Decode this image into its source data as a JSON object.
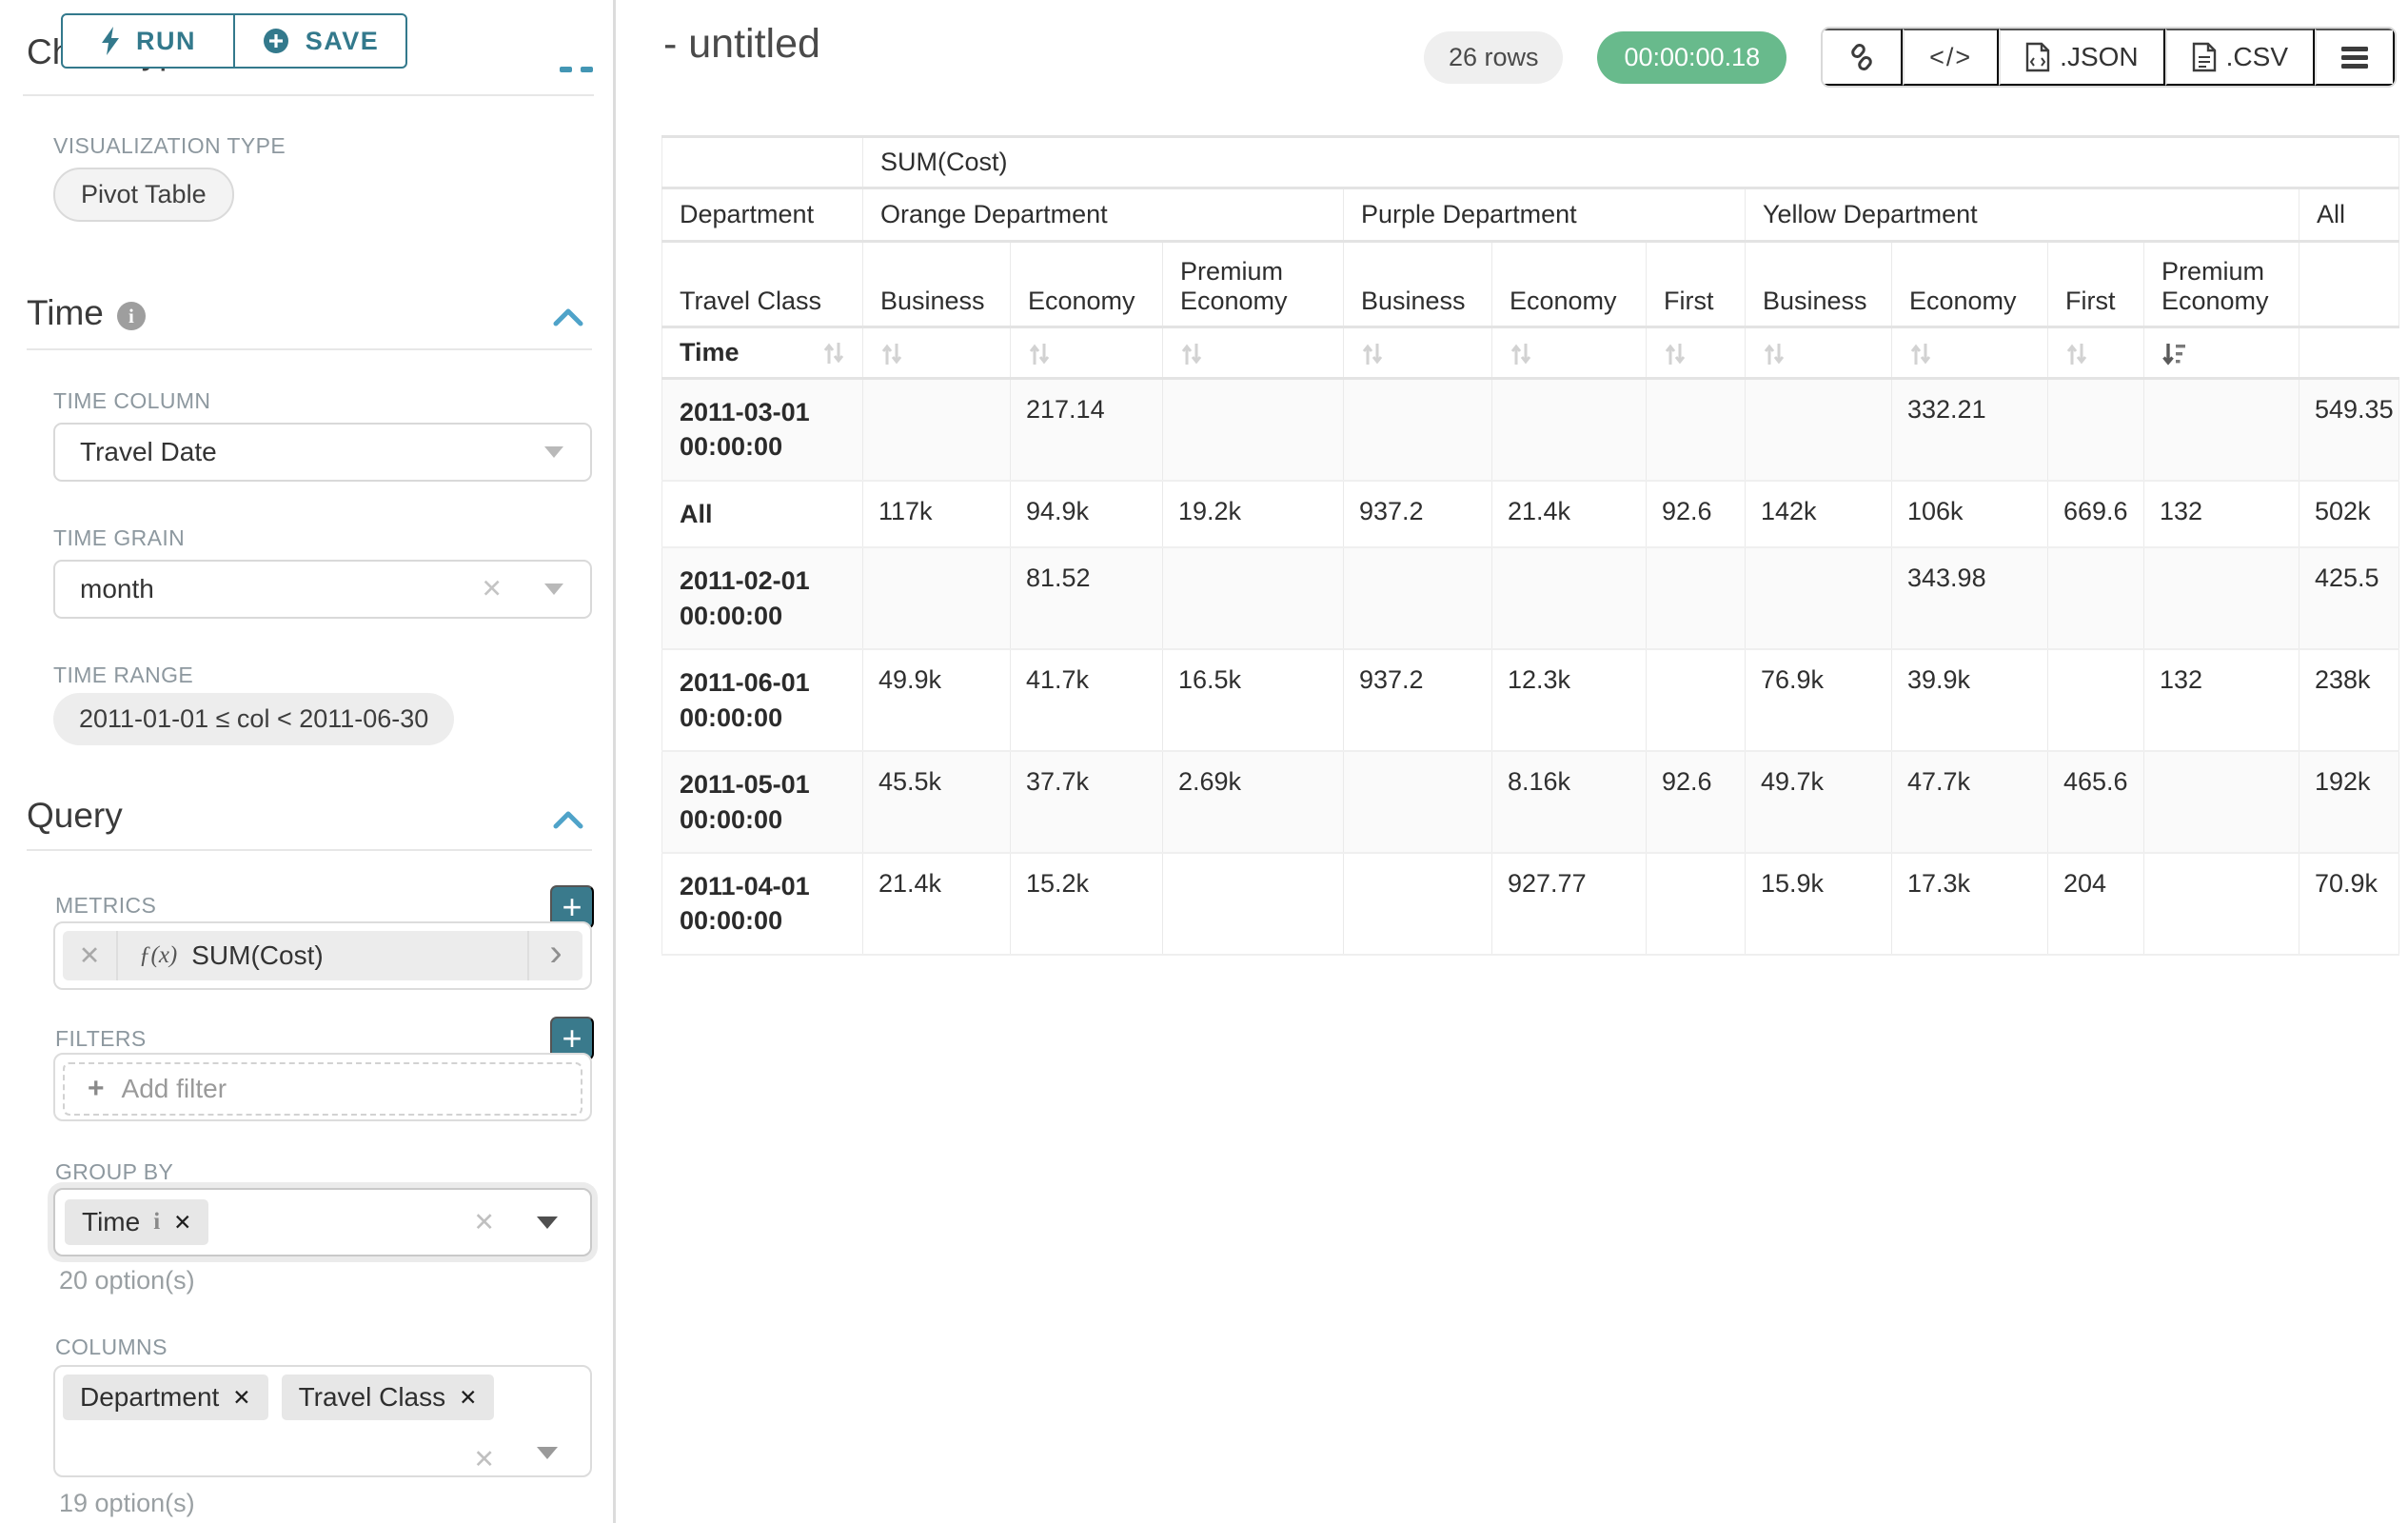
{
  "colors": {
    "accent_teal": "#33798C",
    "success_green": "#68BA8C",
    "label_gray": "#8D989F"
  },
  "sidebar": {
    "scrolled_heading": "Chart Type",
    "run_label": "RUN",
    "save_label": "SAVE",
    "visualization": {
      "label": "VISUALIZATION TYPE",
      "value": "Pivot Table"
    },
    "time_section": {
      "title": "Time",
      "time_column": {
        "label": "TIME COLUMN",
        "value": "Travel Date"
      },
      "time_grain": {
        "label": "TIME GRAIN",
        "value": "month"
      },
      "time_range": {
        "label": "TIME RANGE",
        "value": "2011-01-01 ≤ col < 2011-06-30"
      }
    },
    "query_section": {
      "title": "Query",
      "metrics": {
        "label": "METRICS",
        "fx": "ƒ(x)",
        "value": "SUM(Cost)",
        "remove": "✕",
        "expand": "›"
      },
      "filters": {
        "label": "FILTERS",
        "placeholder": "Add filter",
        "plus": "+"
      },
      "group_by": {
        "label": "GROUP BY",
        "tag": "Time",
        "tag_info": "i",
        "tag_remove": "✕",
        "hint": "20 option(s)"
      },
      "columns": {
        "label": "COLUMNS",
        "tags": [
          "Department",
          "Travel Class"
        ],
        "tag_remove": "✕",
        "hint": "19 option(s)"
      }
    }
  },
  "header": {
    "title": "- untitled",
    "row_count": "26 rows",
    "query_time": "00:00:00.18",
    "export_json": ".JSON",
    "export_csv": ".CSV",
    "code_glyph": "</>"
  },
  "pivot_table": {
    "metric_header": "SUM(Cost)",
    "row_dim_label": "Department",
    "sub_dim_label": "Travel Class",
    "time_label": "Time",
    "column_groups": [
      {
        "label": "Orange Department",
        "children": [
          "Business",
          "Economy",
          "Premium Economy"
        ]
      },
      {
        "label": "Purple Department",
        "children": [
          "Business",
          "Economy",
          "First"
        ]
      },
      {
        "label": "Yellow Department",
        "children": [
          "Business",
          "Economy",
          "First",
          "Premium Economy"
        ]
      },
      {
        "label": "All",
        "children": [
          ""
        ]
      }
    ],
    "rows": [
      {
        "label": "2011-03-01 00:00:00",
        "cells": [
          "",
          "217.14",
          "",
          "",
          "",
          "",
          "",
          "332.21",
          "",
          "",
          "549.35"
        ]
      },
      {
        "label": "All",
        "cells": [
          "117k",
          "94.9k",
          "19.2k",
          "937.2",
          "21.4k",
          "92.6",
          "142k",
          "106k",
          "669.6",
          "132",
          "502k"
        ]
      },
      {
        "label": "2011-02-01 00:00:00",
        "cells": [
          "",
          "81.52",
          "",
          "",
          "",
          "",
          "",
          "343.98",
          "",
          "",
          "425.5"
        ]
      },
      {
        "label": "2011-06-01 00:00:00",
        "cells": [
          "49.9k",
          "41.7k",
          "16.5k",
          "937.2",
          "12.3k",
          "",
          "76.9k",
          "39.9k",
          "",
          "132",
          "238k"
        ]
      },
      {
        "label": "2011-05-01 00:00:00",
        "cells": [
          "45.5k",
          "37.7k",
          "2.69k",
          "",
          "8.16k",
          "92.6",
          "49.7k",
          "47.7k",
          "465.6",
          "",
          "192k"
        ]
      },
      {
        "label": "2011-04-01 00:00:00",
        "cells": [
          "21.4k",
          "15.2k",
          "",
          "",
          "927.77",
          "",
          "15.9k",
          "17.3k",
          "204",
          "",
          "70.9k"
        ]
      }
    ]
  }
}
